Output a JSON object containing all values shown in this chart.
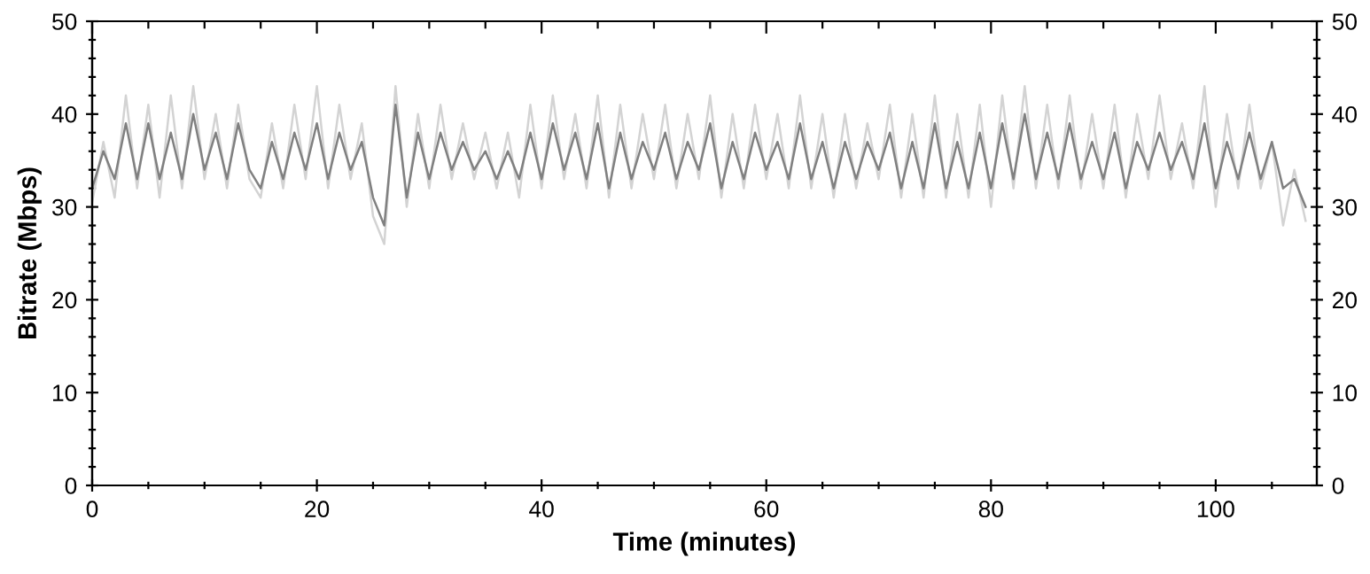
{
  "chart_data": {
    "type": "line",
    "xlabel": "Time (minutes)",
    "ylabel": "Bitrate (Mbps)",
    "x": [
      0,
      1,
      2,
      3,
      4,
      5,
      6,
      7,
      8,
      9,
      10,
      11,
      12,
      13,
      14,
      15,
      16,
      17,
      18,
      19,
      20,
      21,
      22,
      23,
      24,
      25,
      26,
      27,
      28,
      29,
      30,
      31,
      32,
      33,
      34,
      35,
      36,
      37,
      38,
      39,
      40,
      41,
      42,
      43,
      44,
      45,
      46,
      47,
      48,
      49,
      50,
      51,
      52,
      53,
      54,
      55,
      56,
      57,
      58,
      59,
      60,
      61,
      62,
      63,
      64,
      65,
      66,
      67,
      68,
      69,
      70,
      71,
      72,
      73,
      74,
      75,
      76,
      77,
      78,
      79,
      80,
      81,
      82,
      83,
      84,
      85,
      86,
      87,
      88,
      89,
      90,
      91,
      92,
      93,
      94,
      95,
      96,
      97,
      98,
      99,
      100,
      101,
      102,
      103,
      104,
      105,
      106,
      107,
      108
    ],
    "series": [
      {
        "color": "#d3d3d3",
        "values": [
          30.5,
          37,
          31,
          42,
          32,
          41,
          31,
          42,
          32,
          43,
          33,
          40,
          32,
          41,
          33,
          31,
          39,
          32,
          41,
          33,
          43,
          32,
          41,
          33,
          39,
          29,
          26,
          43,
          30,
          40,
          32,
          41,
          33,
          39,
          33,
          38,
          32,
          38,
          31,
          41,
          32,
          42,
          33,
          40,
          32,
          42,
          31,
          41,
          32,
          40,
          33,
          41,
          32,
          40,
          33,
          42,
          31,
          40,
          32,
          41,
          33,
          40,
          32,
          42,
          32,
          40,
          31,
          40,
          32,
          39,
          33,
          41,
          31,
          40,
          31,
          42,
          31,
          40,
          31,
          41,
          30,
          42,
          32,
          43,
          32,
          41,
          32,
          42,
          32,
          40,
          32,
          41,
          31,
          40,
          33,
          42,
          33,
          39,
          32,
          43,
          30,
          40,
          32,
          41,
          32,
          37,
          28,
          34,
          28.5
        ]
      },
      {
        "color": "#808080",
        "values": [
          32,
          36,
          33,
          39,
          33,
          39,
          33,
          38,
          33,
          40,
          34,
          38,
          33,
          39,
          34,
          32,
          37,
          33,
          38,
          34,
          39,
          33,
          38,
          34,
          37,
          31,
          28,
          41,
          31,
          38,
          33,
          38,
          34,
          37,
          34,
          36,
          33,
          36,
          33,
          38,
          33,
          39,
          34,
          38,
          33,
          39,
          32,
          38,
          33,
          37,
          34,
          38,
          33,
          37,
          34,
          39,
          32,
          37,
          33,
          38,
          34,
          37,
          33,
          39,
          33,
          37,
          32,
          37,
          33,
          37,
          34,
          38,
          32,
          37,
          32,
          39,
          32,
          37,
          32,
          38,
          32,
          39,
          33,
          40,
          33,
          38,
          33,
          39,
          33,
          37,
          33,
          38,
          32,
          37,
          34,
          38,
          34,
          37,
          33,
          39,
          32,
          37,
          33,
          38,
          33,
          37,
          32,
          33,
          30
        ]
      }
    ],
    "xlim": [
      0,
      109
    ],
    "xticks": [
      0,
      {
        "value": 5,
        "label": null
      },
      {
        "value": 10,
        "label": null
      },
      {
        "value": 15,
        "label": null
      },
      20,
      {
        "value": 25,
        "label": null
      },
      {
        "value": 30,
        "label": null
      },
      {
        "value": 35,
        "label": null
      },
      40,
      {
        "value": 45,
        "label": null
      },
      {
        "value": 50,
        "label": null
      },
      {
        "value": 55,
        "label": null
      },
      60,
      {
        "value": 65,
        "label": null
      },
      {
        "value": 70,
        "label": null
      },
      {
        "value": 75,
        "label": null
      },
      80,
      {
        "value": 85,
        "label": null
      },
      {
        "value": 90,
        "label": null
      },
      {
        "value": 95,
        "label": null
      },
      100,
      {
        "value": 105,
        "label": null
      }
    ],
    "ylim": [
      0,
      50
    ],
    "yticks": [
      0,
      {
        "value": 2,
        "label": null
      },
      {
        "value": 4,
        "label": null
      },
      {
        "value": 6,
        "label": null
      },
      {
        "value": 8,
        "label": null
      },
      10,
      {
        "value": 12,
        "label": null
      },
      {
        "value": 14,
        "label": null
      },
      {
        "value": 16,
        "label": null
      },
      {
        "value": 18,
        "label": null
      },
      20,
      {
        "value": 22,
        "label": null
      },
      {
        "value": 24,
        "label": null
      },
      {
        "value": 26,
        "label": null
      },
      {
        "value": 28,
        "label": null
      },
      30,
      {
        "value": 32,
        "label": null
      },
      {
        "value": 34,
        "label": null
      },
      {
        "value": 36,
        "label": null
      },
      {
        "value": 38,
        "label": null
      },
      40,
      {
        "value": 42,
        "label": null
      },
      {
        "value": 44,
        "label": null
      },
      {
        "value": 46,
        "label": null
      },
      {
        "value": 48,
        "label": null
      },
      50
    ],
    "y2lim": [
      0,
      50
    ],
    "y2ticks": [
      0,
      {
        "value": 2,
        "label": null
      },
      {
        "value": 4,
        "label": null
      },
      {
        "value": 6,
        "label": null
      },
      {
        "value": 8,
        "label": null
      },
      10,
      {
        "value": 12,
        "label": null
      },
      {
        "value": 14,
        "label": null
      },
      {
        "value": 16,
        "label": null
      },
      {
        "value": 18,
        "label": null
      },
      20,
      {
        "value": 22,
        "label": null
      },
      {
        "value": 24,
        "label": null
      },
      {
        "value": 26,
        "label": null
      },
      {
        "value": 28,
        "label": null
      },
      30,
      {
        "value": 32,
        "label": null
      },
      {
        "value": 34,
        "label": null
      },
      {
        "value": 36,
        "label": null
      },
      {
        "value": 38,
        "label": null
      },
      40,
      {
        "value": 42,
        "label": null
      },
      {
        "value": 44,
        "label": null
      },
      {
        "value": 46,
        "label": null
      },
      {
        "value": 48,
        "label": null
      },
      50
    ],
    "grid": false,
    "legend": false,
    "marker": "none",
    "line_style": "solid"
  }
}
